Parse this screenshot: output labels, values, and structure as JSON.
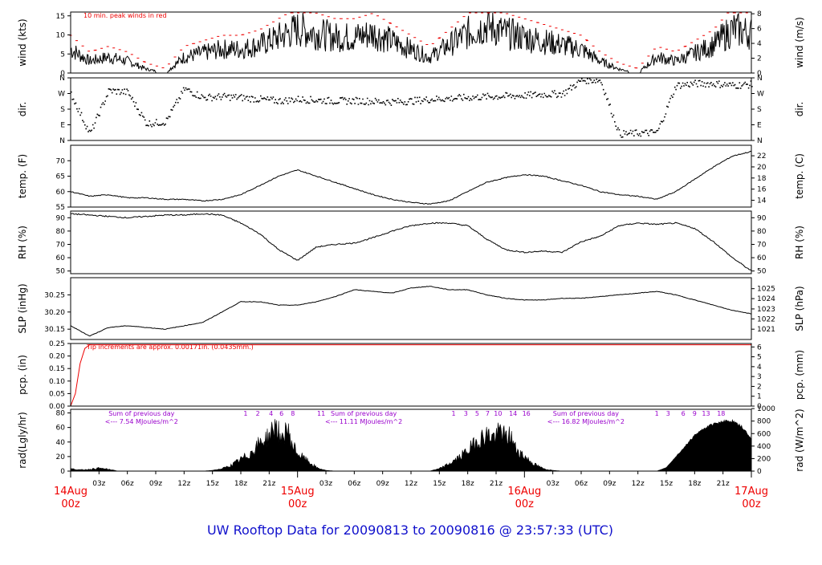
{
  "title": "UW Rooftop Data for 20090813  to  20090816 @ 23:57:33  (UTC)",
  "colors": {
    "peak": "#ee0000",
    "pcp": "#ee0000",
    "note_purple": "#9900cc",
    "title": "#1010cc",
    "date": "#ee0000"
  },
  "x_axis": {
    "hour_labels": [
      "03z",
      "06z",
      "09z",
      "12z",
      "15z",
      "18z",
      "21z",
      "03z",
      "06z",
      "09z",
      "12z",
      "15z",
      "18z",
      "21z",
      "03z",
      "06z",
      "09z",
      "12z",
      "15z",
      "18z",
      "21z"
    ],
    "hour_positions_h": [
      3,
      6,
      9,
      12,
      15,
      18,
      21,
      27,
      30,
      33,
      36,
      39,
      42,
      45,
      51,
      54,
      57,
      60,
      63,
      66,
      69
    ],
    "day_labels": [
      {
        "date": "14Aug",
        "time": "00z",
        "h": 0
      },
      {
        "date": "15Aug",
        "time": "00z",
        "h": 24
      },
      {
        "date": "16Aug",
        "time": "00z",
        "h": 48
      },
      {
        "date": "17Aug",
        "time": "00z",
        "h": 72
      }
    ],
    "range_h": [
      0,
      72
    ]
  },
  "chart_data": [
    {
      "type": "line",
      "id": "wind",
      "ylabel": "wind (kts)",
      "ylabel_right": "wind (m/s)",
      "ylim": [
        0,
        16
      ],
      "yticks": [
        "0",
        "5",
        "10",
        "15"
      ],
      "ytick_values": [
        0,
        5,
        10,
        15
      ],
      "yticks_right": [
        "0",
        "2",
        "4",
        "6",
        "8"
      ],
      "ytick_right_values_kts": [
        0,
        3.89,
        7.78,
        11.66,
        15.55
      ],
      "annotation": "10 min. peak winds in red",
      "x": [
        0,
        2,
        4,
        6,
        8,
        10,
        12,
        14,
        16,
        18,
        20,
        22,
        24,
        26,
        28,
        30,
        32,
        34,
        36,
        38,
        40,
        42,
        44,
        46,
        48,
        50,
        52,
        54,
        56,
        58,
        60,
        62,
        64,
        66,
        68,
        70,
        72
      ],
      "values": [
        6,
        3,
        4,
        3,
        1,
        0,
        4,
        5,
        6,
        6,
        7,
        9,
        11,
        10,
        9,
        9,
        10,
        8,
        6,
        4,
        7,
        10,
        12,
        10,
        9,
        8,
        7,
        6,
        3,
        1,
        0,
        4,
        3,
        5,
        7,
        11,
        10
      ]
    },
    {
      "type": "scatter",
      "id": "dir",
      "ylabel": "dir.",
      "ylabel_right": "dir.",
      "ylim": [
        0,
        360
      ],
      "yticks": [
        "N",
        "E",
        "S",
        "W",
        "N"
      ],
      "ytick_values": [
        0,
        90,
        180,
        270,
        360
      ],
      "x": [
        0,
        2,
        4,
        6,
        8,
        10,
        12,
        14,
        16,
        18,
        20,
        22,
        24,
        26,
        28,
        30,
        32,
        34,
        36,
        38,
        40,
        42,
        44,
        46,
        48,
        50,
        52,
        54,
        56,
        58,
        60,
        62,
        64,
        66,
        68,
        70,
        72
      ],
      "values": [
        270,
        40,
        290,
        280,
        100,
        110,
        300,
        250,
        255,
        250,
        240,
        230,
        240,
        235,
        230,
        232,
        228,
        225,
        230,
        240,
        245,
        250,
        255,
        258,
        262,
        268,
        272,
        350,
        350,
        40,
        45,
        50,
        320,
        330,
        330,
        320,
        325
      ]
    },
    {
      "type": "line",
      "id": "temp",
      "ylabel": "temp. (F)",
      "ylabel_right": "temp. (C)",
      "ylim": [
        55,
        75
      ],
      "yticks": [
        "55",
        "60",
        "65",
        "70"
      ],
      "ytick_values": [
        55,
        60,
        65,
        70
      ],
      "yticks_right": [
        "14",
        "16",
        "18",
        "20",
        "22"
      ],
      "ytick_right_values_f": [
        57.2,
        60.8,
        64.4,
        68,
        71.6
      ],
      "x": [
        0,
        2,
        4,
        6,
        8,
        10,
        12,
        14,
        16,
        18,
        20,
        22,
        24,
        26,
        28,
        30,
        32,
        34,
        36,
        38,
        40,
        42,
        44,
        46,
        48,
        50,
        52,
        54,
        56,
        58,
        60,
        62,
        64,
        66,
        68,
        70,
        72
      ],
      "values": [
        60,
        58.5,
        59,
        58,
        58,
        57.5,
        57.5,
        57,
        57.5,
        59,
        62,
        65,
        67,
        65,
        63,
        61,
        59,
        57.5,
        56.5,
        56,
        57,
        60,
        63,
        64.5,
        65.5,
        65,
        63.5,
        62,
        60,
        59,
        58.5,
        57.5,
        60,
        64,
        68,
        71.5,
        73
      ]
    },
    {
      "type": "line",
      "id": "rh",
      "ylabel": "RH (%)",
      "ylabel_right": "RH (%)",
      "ylim": [
        48,
        95
      ],
      "yticks": [
        "50",
        "60",
        "70",
        "80",
        "90"
      ],
      "ytick_values": [
        50,
        60,
        70,
        80,
        90
      ],
      "yticks_right": [
        "50",
        "60",
        "70",
        "80",
        "90"
      ],
      "ytick_right_values": [
        50,
        60,
        70,
        80,
        90
      ],
      "x": [
        0,
        2,
        4,
        6,
        8,
        10,
        12,
        14,
        16,
        18,
        20,
        22,
        24,
        26,
        28,
        30,
        32,
        34,
        36,
        38,
        40,
        42,
        44,
        46,
        48,
        50,
        52,
        54,
        56,
        58,
        60,
        62,
        64,
        66,
        68,
        70,
        72
      ],
      "values": [
        93,
        92,
        91,
        90,
        91,
        92,
        92,
        93,
        92,
        86,
        78,
        66,
        58,
        68,
        70,
        71,
        75,
        80,
        84,
        86,
        86,
        84,
        74,
        66,
        64,
        65,
        64,
        72,
        76,
        84,
        86,
        85,
        86,
        82,
        72,
        60,
        50
      ]
    },
    {
      "type": "line",
      "id": "slp",
      "ylabel": "SLP (inHg)",
      "ylabel_right": "SLP (hPa)",
      "ylim": [
        30.12,
        30.3
      ],
      "yticks": [
        "30.15",
        "30.20",
        "30.25"
      ],
      "ytick_values": [
        30.15,
        30.2,
        30.25
      ],
      "yticks_right": [
        "1021",
        "1022",
        "1023",
        "1024",
        "1025"
      ],
      "ytick_right_values_inhg": [
        30.15,
        30.18,
        30.209,
        30.239,
        30.268
      ],
      "x": [
        0,
        2,
        4,
        6,
        8,
        10,
        12,
        14,
        16,
        18,
        20,
        22,
        24,
        26,
        28,
        30,
        32,
        34,
        36,
        38,
        40,
        42,
        44,
        46,
        48,
        50,
        52,
        54,
        56,
        58,
        60,
        62,
        64,
        66,
        68,
        70,
        72
      ],
      "values": [
        30.16,
        30.13,
        30.155,
        30.16,
        30.155,
        30.15,
        30.16,
        30.17,
        30.2,
        30.23,
        30.23,
        30.22,
        30.22,
        30.23,
        30.245,
        30.265,
        30.26,
        30.255,
        30.27,
        30.275,
        30.265,
        30.265,
        30.25,
        30.24,
        30.235,
        30.235,
        30.24,
        30.24,
        30.245,
        30.25,
        30.255,
        30.26,
        30.25,
        30.235,
        30.22,
        30.205,
        30.195
      ]
    },
    {
      "type": "area",
      "id": "pcp",
      "ylabel": "pcp. (in)",
      "ylabel_right": "pcp. (mm)",
      "ylim": [
        0,
        0.25
      ],
      "yticks": [
        "0.00",
        "0.05",
        "0.10",
        "0.15",
        "0.20",
        "0.25"
      ],
      "ytick_values": [
        0,
        0.05,
        0.1,
        0.15,
        0.2,
        0.25
      ],
      "yticks_right": [
        "0",
        "1",
        "2",
        "3",
        "4",
        "5",
        "6"
      ],
      "ytick_right_values_in": [
        0,
        0.0394,
        0.0787,
        0.1181,
        0.1575,
        0.1969,
        0.2362
      ],
      "annotation": "Tip increments are approx. 0.00171in. (0.0435mm.)",
      "x": [
        0,
        0.5,
        1,
        1.5,
        2,
        72
      ],
      "values": [
        0,
        0.05,
        0.17,
        0.23,
        0.245,
        0.245
      ]
    },
    {
      "type": "area",
      "id": "rad",
      "ylabel": "rad(Lgly/hr)",
      "ylabel_right": "rad (W/m^2)",
      "ylim": [
        0,
        85
      ],
      "yticks": [
        "0",
        "20",
        "40",
        "60",
        "80"
      ],
      "ytick_values": [
        0,
        20,
        40,
        60,
        80
      ],
      "yticks_right": [
        "0",
        "200",
        "400",
        "600",
        "800",
        "1000"
      ],
      "ytick_right_values_lgly": [
        0,
        17.2,
        34.4,
        51.6,
        68.8,
        86
      ],
      "x": [
        0,
        0.5,
        1,
        2,
        3,
        4,
        5,
        14,
        15,
        16,
        17,
        18,
        19,
        20,
        21,
        21.8,
        22.3,
        22.8,
        23.3,
        24,
        25,
        26,
        27,
        28,
        38,
        39,
        40,
        41,
        42,
        43,
        44,
        45,
        45.5,
        46,
        46.5,
        47,
        48,
        49,
        50,
        51,
        52,
        62,
        63,
        64,
        65,
        66,
        67,
        68,
        69,
        70,
        71,
        72
      ],
      "values": [
        4,
        3,
        2,
        3,
        5,
        3,
        0,
        0,
        1,
        4,
        10,
        20,
        30,
        48,
        60,
        82,
        45,
        78,
        50,
        30,
        18,
        6,
        1,
        0,
        0,
        4,
        12,
        22,
        35,
        52,
        62,
        58,
        72,
        55,
        62,
        40,
        25,
        12,
        4,
        1,
        0,
        0,
        5,
        20,
        35,
        50,
        60,
        66,
        70,
        70,
        62,
        45
      ],
      "peak_hours": [
        "1",
        "2",
        "4",
        "6",
        "8",
        "11",
        "1",
        "3",
        "5",
        "7",
        "10",
        "14",
        "16",
        "1",
        "3",
        "6",
        "9",
        "13",
        "18"
      ],
      "peak_hour_positions_h": [
        18.5,
        19.8,
        21.2,
        22.3,
        23.5,
        26.5,
        40.5,
        41.8,
        43.0,
        44.1,
        45.2,
        46.8,
        48.2,
        62.0,
        63.2,
        64.8,
        66.0,
        67.2,
        68.8
      ],
      "sum_notes": [
        {
          "line1": "Sum of previous day",
          "line2": "<--- 7.54 MJoules/m^2",
          "h": 7.5
        },
        {
          "line1": "Sum of previous day",
          "line2": "<--- 11.11 MJoules/m^2",
          "h": 31
        },
        {
          "line1": "Sum of previous day",
          "line2": "<--- 16.82 MJoules/m^2",
          "h": 54.5
        }
      ]
    }
  ]
}
